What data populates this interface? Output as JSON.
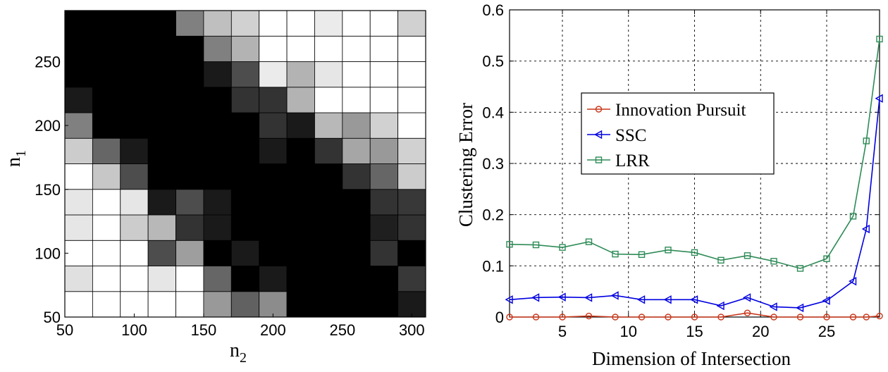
{
  "chart_data": [
    {
      "type": "heatmap",
      "title": "",
      "xlabel_base": "n",
      "xlabel_sub": "2",
      "ylabel_base": "n",
      "ylabel_sub": "1",
      "xlim": [
        50,
        310
      ],
      "ylim": [
        50,
        290
      ],
      "x_ticks": [
        50,
        100,
        150,
        200,
        250,
        300
      ],
      "y_ticks": [
        50,
        100,
        150,
        200,
        250
      ],
      "x_tick_labels": [
        "50",
        "100",
        "150",
        "200",
        "250",
        "300"
      ],
      "y_tick_labels": [
        "50",
        "100",
        "150",
        "200",
        "250"
      ],
      "x_centers": [
        60,
        80,
        100,
        120,
        140,
        160,
        180,
        200,
        220,
        240,
        260,
        280,
        300
      ],
      "y_centers": [
        60,
        80,
        100,
        120,
        140,
        160,
        180,
        200,
        220,
        240,
        260,
        280
      ],
      "value_scale": "0 = black, 1 = white",
      "values": [
        [
          1.0,
          1.0,
          1.0,
          1.0,
          1.0,
          0.6,
          0.38,
          0.55,
          0.0,
          0.0,
          0.0,
          0.0,
          0.1
        ],
        [
          0.88,
          1.0,
          1.0,
          0.9,
          1.0,
          0.4,
          0.0,
          0.1,
          0.0,
          0.0,
          0.0,
          0.0,
          0.22
        ],
        [
          1.0,
          1.0,
          1.0,
          0.3,
          0.62,
          0.0,
          0.1,
          0.0,
          0.0,
          0.0,
          0.0,
          0.2,
          0.0
        ],
        [
          0.9,
          1.0,
          0.8,
          0.72,
          0.2,
          0.1,
          0.0,
          0.0,
          0.0,
          0.0,
          0.0,
          0.12,
          0.2
        ],
        [
          0.9,
          1.0,
          0.9,
          0.1,
          0.3,
          0.1,
          0.0,
          0.0,
          0.0,
          0.0,
          0.0,
          0.2,
          0.22
        ],
        [
          1.0,
          0.78,
          0.3,
          0.0,
          0.0,
          0.0,
          0.0,
          0.0,
          0.0,
          0.0,
          0.2,
          0.4,
          0.8
        ],
        [
          0.8,
          0.4,
          0.1,
          0.0,
          0.0,
          0.0,
          0.0,
          0.1,
          0.0,
          0.2,
          0.65,
          0.6,
          0.82
        ],
        [
          0.5,
          0.0,
          0.0,
          0.0,
          0.0,
          0.0,
          0.0,
          0.2,
          0.1,
          0.72,
          0.6,
          0.82,
          1.0
        ],
        [
          0.1,
          0.0,
          0.0,
          0.0,
          0.0,
          0.0,
          0.2,
          0.2,
          0.7,
          1.0,
          1.0,
          1.0,
          1.0
        ],
        [
          0.0,
          0.0,
          0.0,
          0.0,
          0.0,
          0.1,
          0.3,
          0.92,
          0.7,
          0.9,
          1.0,
          1.0,
          1.0
        ],
        [
          0.0,
          0.0,
          0.0,
          0.0,
          0.0,
          0.5,
          0.7,
          1.0,
          1.0,
          1.0,
          1.0,
          1.0,
          1.0
        ],
        [
          0.0,
          0.0,
          0.0,
          0.0,
          0.5,
          0.75,
          0.82,
          1.0,
          1.0,
          0.92,
          1.0,
          1.0,
          0.82
        ]
      ]
    },
    {
      "type": "line",
      "title": "",
      "xlabel": "Dimension of Intersection",
      "ylabel": "Clustering Error",
      "xlim": [
        1,
        29
      ],
      "ylim": [
        0,
        0.6
      ],
      "grid": true,
      "legend_position": "center-left",
      "x_ticks": [
        5,
        10,
        15,
        20,
        25
      ],
      "x_tick_labels": [
        "5",
        "10",
        "15",
        "20",
        "25"
      ],
      "y_ticks": [
        0,
        0.1,
        0.2,
        0.3,
        0.4,
        0.5,
        0.6
      ],
      "y_tick_labels": [
        "0",
        "0.1",
        "0.2",
        "0.3",
        "0.4",
        "0.5",
        "0.6"
      ],
      "x": [
        1,
        3,
        5,
        7,
        9,
        11,
        13,
        15,
        17,
        19,
        21,
        23,
        25,
        27,
        28,
        29
      ],
      "series": [
        {
          "name": "Innovation Pursuit",
          "color": "#c8361a",
          "marker": "circle",
          "values": [
            0.0,
            0.0,
            0.0,
            0.002,
            0.0,
            0.0,
            0.0,
            0.0,
            0.0,
            0.008,
            0.0,
            0.0,
            0.0,
            0.0,
            0.0,
            0.002
          ]
        },
        {
          "name": "SSC",
          "color": "#0000e0",
          "marker": "triangle-left",
          "values": [
            0.034,
            0.038,
            0.039,
            0.038,
            0.042,
            0.034,
            0.034,
            0.034,
            0.022,
            0.038,
            0.02,
            0.018,
            0.032,
            0.07,
            0.172,
            0.427
          ]
        },
        {
          "name": "LRR",
          "color": "#2e8b57",
          "marker": "square",
          "values": [
            0.142,
            0.141,
            0.136,
            0.147,
            0.123,
            0.122,
            0.131,
            0.126,
            0.111,
            0.12,
            0.109,
            0.095,
            0.114,
            0.197,
            0.344,
            0.543
          ]
        }
      ]
    }
  ]
}
